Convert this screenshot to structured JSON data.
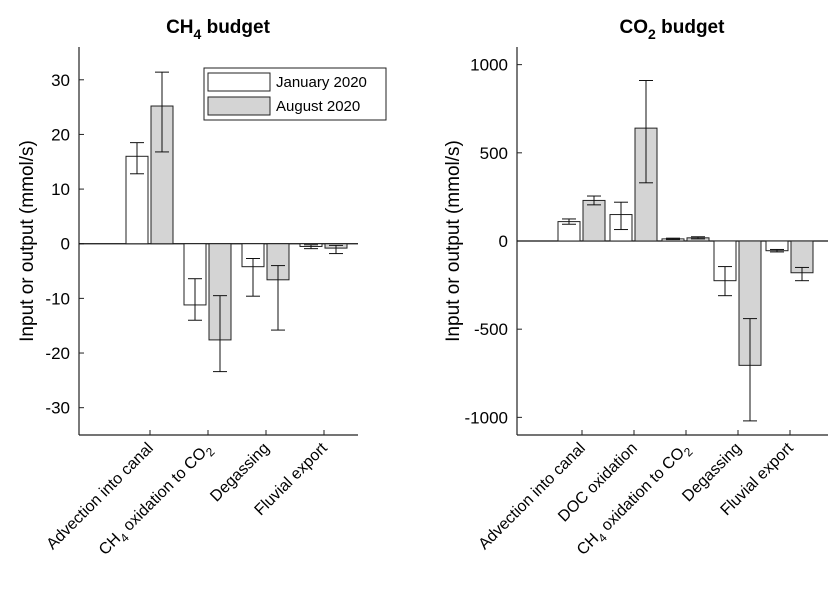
{
  "chart_data": [
    {
      "id": "ch4",
      "type": "bar",
      "title": "CH",
      "title_sub": "4",
      "title_suffix": " budget",
      "ylabel": "Input or output (mmol/s)",
      "ylim": [
        -35,
        36
      ],
      "yticks": [
        -30,
        -20,
        -10,
        0,
        10,
        20,
        30
      ],
      "categories": [
        {
          "label": "Advection into canal"
        },
        {
          "label": "CH",
          "sub": "4",
          "suffix": " oxidation to CO",
          "sub2": "2"
        },
        {
          "label": "Degassing"
        },
        {
          "label": "Fluvial export"
        }
      ],
      "series": [
        {
          "name": "January 2020",
          "color": "#ffffff",
          "values": [
            16.0,
            -11.2,
            -4.2,
            -0.5
          ],
          "err_low": [
            12.8,
            -14.0,
            -9.6,
            -0.9
          ],
          "err_high": [
            18.5,
            -6.4,
            -2.7,
            -0.2
          ]
        },
        {
          "name": "August 2020",
          "color": "#d4d4d4",
          "values": [
            25.2,
            -17.6,
            -6.6,
            -0.8
          ],
          "err_low": [
            16.8,
            -23.4,
            -15.8,
            -1.8
          ],
          "err_high": [
            31.4,
            -9.5,
            -4.0,
            -0.3
          ]
        }
      ],
      "legend": "top-right",
      "grid": false
    },
    {
      "id": "co2",
      "type": "bar",
      "title": "CO",
      "title_sub": "2",
      "title_suffix": " budget",
      "ylabel": "Input or output (mmol/s)",
      "ylim": [
        -1100,
        1100
      ],
      "yticks": [
        -1000,
        -500,
        0,
        500,
        1000
      ],
      "categories": [
        {
          "label": "Advection into canal"
        },
        {
          "label": "DOC oxidation"
        },
        {
          "label": "CH",
          "sub": "4",
          "suffix": " oxidation to CO",
          "sub2": "2"
        },
        {
          "label": "Degassing"
        },
        {
          "label": "Fluvial export"
        }
      ],
      "series": [
        {
          "name": "January 2020",
          "color": "#ffffff",
          "values": [
            110,
            150,
            12,
            -225,
            -55
          ],
          "err_low": [
            95,
            65,
            8,
            -310,
            -62
          ],
          "err_high": [
            125,
            220,
            16,
            -145,
            -48
          ]
        },
        {
          "name": "August 2020",
          "color": "#d4d4d4",
          "values": [
            230,
            640,
            18,
            -705,
            -180
          ],
          "err_low": [
            205,
            330,
            12,
            -1020,
            -225
          ],
          "err_high": [
            255,
            910,
            24,
            -440,
            -150
          ]
        }
      ],
      "grid": false
    }
  ]
}
